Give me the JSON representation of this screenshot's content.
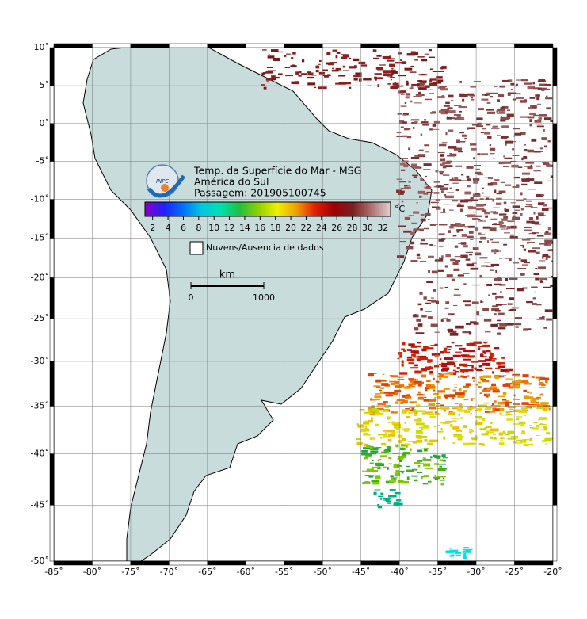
{
  "map": {
    "title": "Temp. da Superfície do Mar - MSG",
    "region": "América do Sul",
    "pass": "Passagem: 201905100745",
    "logo": "INPE",
    "lonlim": [
      -85,
      -20
    ],
    "latlim": [
      -50,
      10
    ],
    "lon_ticks": [
      {
        "value": -85,
        "label": "-85˚"
      },
      {
        "value": -80,
        "label": "-80˚"
      },
      {
        "value": -75,
        "label": "-75˚"
      },
      {
        "value": -70,
        "label": "-70˚"
      },
      {
        "value": -65,
        "label": "-65˚"
      },
      {
        "value": -60,
        "label": "-60˚"
      },
      {
        "value": -55,
        "label": "-55˚"
      },
      {
        "value": -50,
        "label": "-50˚"
      },
      {
        "value": -45,
        "label": "-45˚"
      },
      {
        "value": -40,
        "label": "-40˚"
      },
      {
        "value": -35,
        "label": "-35˚"
      },
      {
        "value": -30,
        "label": "-30˚"
      },
      {
        "value": -25,
        "label": "-25˚"
      },
      {
        "value": -20,
        "label": "-20˚"
      }
    ],
    "lat_ticks": [
      {
        "value": 10,
        "label": "10˚"
      },
      {
        "value": 5,
        "label": "5˚"
      },
      {
        "value": 0,
        "label": "0˚"
      },
      {
        "value": -5,
        "label": "-5˚"
      },
      {
        "value": -10,
        "label": "-10˚"
      },
      {
        "value": -15,
        "label": "-15˚"
      },
      {
        "value": -20,
        "label": "-20˚"
      },
      {
        "value": -25,
        "label": "-25˚"
      },
      {
        "value": -30,
        "label": "-30˚"
      },
      {
        "value": -35,
        "label": "-35˚"
      },
      {
        "value": -40,
        "label": "-40˚"
      },
      {
        "value": -45,
        "label": "-45˚"
      },
      {
        "value": -50,
        "label": "-50˚"
      }
    ],
    "colorbar": {
      "lim": [
        1,
        33
      ],
      "ticks": [
        2,
        4,
        6,
        8,
        10,
        12,
        14,
        16,
        18,
        20,
        22,
        24,
        26,
        28,
        30,
        32
      ],
      "unit": "°C",
      "colors": [
        "#8a00c8",
        "#2020ff",
        "#0070ff",
        "#00c8e0",
        "#00e0b0",
        "#20c040",
        "#90d000",
        "#f0f000",
        "#f0a000",
        "#e02000",
        "#a00000",
        "#7a2020",
        "#b07070",
        "#e0d0d0"
      ]
    },
    "legend": "Nuvens/Ausencia de dados",
    "scale": {
      "unit": "km",
      "ticks": [
        0,
        1000
      ]
    }
  }
}
